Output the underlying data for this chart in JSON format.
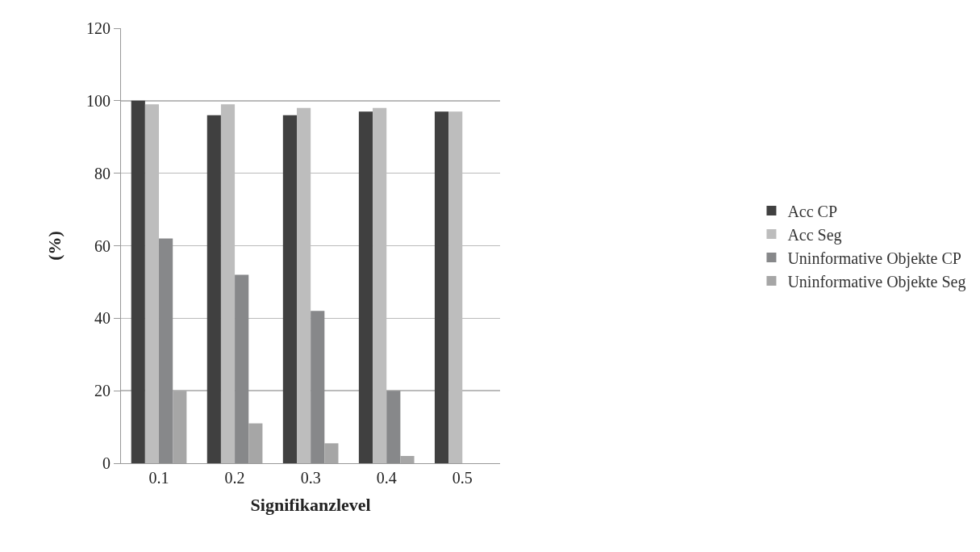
{
  "chart_data": {
    "type": "bar",
    "xlabel": "Signifikanzlevel",
    "ylabel": "(%)",
    "categories": [
      "0.1",
      "0.2",
      "0.3",
      "0.4",
      "0.5"
    ],
    "series": [
      {
        "name": "Acc CP",
        "color": "#404040",
        "values": [
          100,
          96,
          96,
          97,
          97
        ]
      },
      {
        "name": "Acc Seg",
        "color": "#bdbdbd",
        "values": [
          99,
          99,
          98,
          98,
          97
        ]
      },
      {
        "name": "Uninformative Objekte CP",
        "color": "#87888a",
        "values": [
          62,
          52,
          42,
          20,
          null
        ]
      },
      {
        "name": "Uninformative Objekte Seg",
        "color": "#a6a6a6",
        "values": [
          20,
          11,
          5.5,
          2,
          null
        ]
      }
    ],
    "ylim": [
      0,
      120
    ],
    "yticks": [
      0,
      20,
      40,
      60,
      80,
      100,
      120
    ],
    "grid": "y",
    "legend": "right"
  }
}
